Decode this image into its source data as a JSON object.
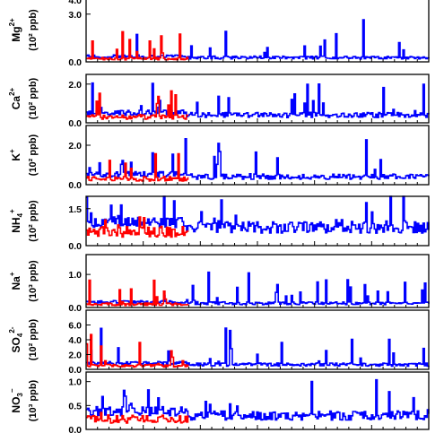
{
  "chart_data": [
    {
      "type": "line",
      "ylabel_species": "Mg",
      "ylabel_sup": "2+",
      "ylabel_units": "(10² ppb)",
      "ylim": [
        0,
        4.0
      ],
      "yticks": [
        "3.0",
        "0.0"
      ],
      "ytick_values": [
        3.0,
        0.0
      ],
      "top_clipped_label": "4.0",
      "series": [
        {
          "color": "#ff0000"
        },
        {
          "color": "#0000ff"
        }
      ]
    },
    {
      "type": "line",
      "ylabel_species": "Ca",
      "ylabel_sup": "2+",
      "ylabel_units": "(10² ppb)",
      "ylim": [
        0,
        2.5
      ],
      "yticks": [
        "2.0",
        "0.0"
      ],
      "ytick_values": [
        2.0,
        0.0
      ],
      "series": [
        {
          "color": "#ff0000"
        },
        {
          "color": "#0000ff"
        }
      ]
    },
    {
      "type": "line",
      "ylabel_species": "K",
      "ylabel_sup": "+",
      "ylabel_units": "(10² ppb)",
      "ylim": [
        0,
        3.0
      ],
      "yticks": [
        "2.0",
        "0.0"
      ],
      "ytick_values": [
        2.0,
        0.0
      ],
      "series": [
        {
          "color": "#ff0000"
        },
        {
          "color": "#0000ff"
        }
      ]
    },
    {
      "type": "line",
      "ylabel_species": "NH",
      "ylabel_sub": "4",
      "ylabel_sup": "+",
      "ylabel_units": "(10² ppb)",
      "ylim": [
        0,
        2.0
      ],
      "yticks": [
        "1.5",
        "0.0"
      ],
      "ytick_values": [
        1.5,
        0.0
      ],
      "series": [
        {
          "color": "#ff0000"
        },
        {
          "color": "#0000ff"
        }
      ]
    },
    {
      "type": "line",
      "ylabel_species": "Na",
      "ylabel_sup": "+",
      "ylabel_units": "(10³ ppb)",
      "ylim": [
        0,
        1.6
      ],
      "yticks": [
        "1.0",
        "0.0"
      ],
      "ytick_values": [
        1.0,
        0.0
      ],
      "series": [
        {
          "color": "#ff0000"
        },
        {
          "color": "#0000ff"
        }
      ]
    },
    {
      "type": "line",
      "ylabel_species": "SO",
      "ylabel_sub": "4",
      "ylabel_sup": "2-",
      "ylabel_units": "(10² ppb)",
      "ylim": [
        0,
        8.0
      ],
      "yticks": [
        "6.0",
        "4.0",
        "2.0",
        "0.0"
      ],
      "ytick_values": [
        6.0,
        4.0,
        2.0,
        0.0
      ],
      "series": [
        {
          "color": "#ff0000"
        },
        {
          "color": "#0000ff"
        }
      ]
    },
    {
      "type": "line",
      "ylabel_species": "NO",
      "ylabel_sub": "3",
      "ylabel_sup": "−",
      "ylabel_units": "(10³ ppb)",
      "ylim": [
        0,
        1.2
      ],
      "yticks": [
        "1.0",
        "0.5",
        "0.0"
      ],
      "ytick_values": [
        1.0,
        0.5,
        0.0
      ],
      "series": [
        {
          "color": "#ff0000"
        },
        {
          "color": "#0000ff"
        }
      ]
    }
  ]
}
